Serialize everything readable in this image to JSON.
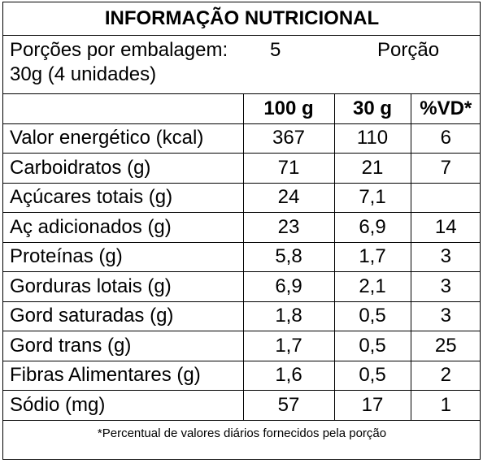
{
  "title": "INFORMAÇÃO NUTRICIONAL",
  "serving": {
    "label": "Porções por embalagem:",
    "value": "5",
    "portion_label": "Porção",
    "portion_size": "30g (4 unidades)"
  },
  "columns": [
    "100 g",
    "30 g",
    "%VD*"
  ],
  "rows": [
    {
      "name": "Valor energético (kcal)",
      "per100": "367",
      "per30": "110",
      "vd": "6"
    },
    {
      "name": "Carboidratos (g)",
      "per100": "71",
      "per30": "21",
      "vd": "7"
    },
    {
      "name": "Açúcares totais (g)",
      "per100": "24",
      "per30": "7,1",
      "vd": ""
    },
    {
      "name": "Aç adicionados (g)",
      "per100": "23",
      "per30": "6,9",
      "vd": "14"
    },
    {
      "name": "Proteínas (g)",
      "per100": "5,8",
      "per30": "1,7",
      "vd": "3"
    },
    {
      "name": "Gorduras lotais (g)",
      "per100": "6,9",
      "per30": "2,1",
      "vd": "3"
    },
    {
      "name": "Gord saturadas (g)",
      "per100": "1,8",
      "per30": "0,5",
      "vd": "3"
    },
    {
      "name": "Gord trans (g)",
      "per100": "1,7",
      "per30": "0,5",
      "vd": "25"
    },
    {
      "name": "Fibras Alimentares (g)",
      "per100": "1,6",
      "per30": "0,5",
      "vd": "2"
    },
    {
      "name": "Sódio (mg)",
      "per100": "57",
      "per30": "17",
      "vd": "1"
    }
  ],
  "footnote": "*Percentual de valores diários fornecidos pela porção"
}
